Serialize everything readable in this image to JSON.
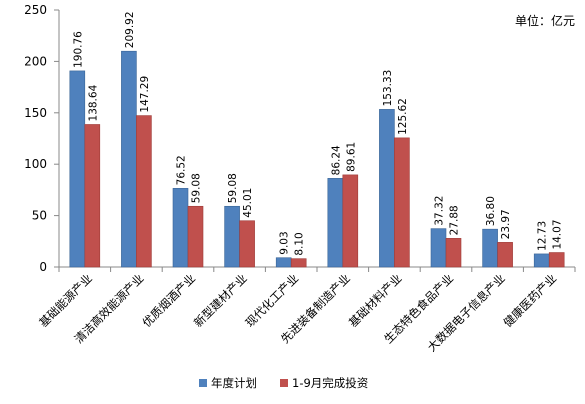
{
  "chart_data": {
    "type": "bar",
    "unit": "单位：亿元",
    "categories": [
      "基础能源产业",
      "清洁高效能源产业",
      "优质烟酒产业",
      "新型建材产业",
      "现代化工产业",
      "先进装备制造产业",
      "基础材料产业",
      "生态特色食品产业",
      "大数据电子信息产业",
      "健康医药产业"
    ],
    "series": [
      {
        "name": "年度计划",
        "color": "#4F81BD",
        "values": [
          190.76,
          209.92,
          76.52,
          59.08,
          9.03,
          86.24,
          153.33,
          37.32,
          36.8,
          12.73
        ],
        "labels": [
          "190.76",
          "209.92",
          "76.52",
          "59.08",
          "9.03",
          "86.24",
          "153.33",
          "37.32",
          "36.80",
          "12.73"
        ]
      },
      {
        "name": "1-9月完成投资",
        "color": "#C0504D",
        "values": [
          138.64,
          147.29,
          59.08,
          45.01,
          8.1,
          89.61,
          125.62,
          27.88,
          23.97,
          14.07
        ],
        "labels": [
          "138.64",
          "147.29",
          "59.08",
          "45.01",
          "8.10",
          "89.61",
          "125.62",
          "27.88",
          "23.97",
          "14.07"
        ]
      }
    ],
    "yticks": [
      "0",
      "50",
      "100",
      "150",
      "200",
      "250"
    ],
    "ylim": [
      0,
      250
    ],
    "grid": false,
    "legend_position": "bottom"
  }
}
